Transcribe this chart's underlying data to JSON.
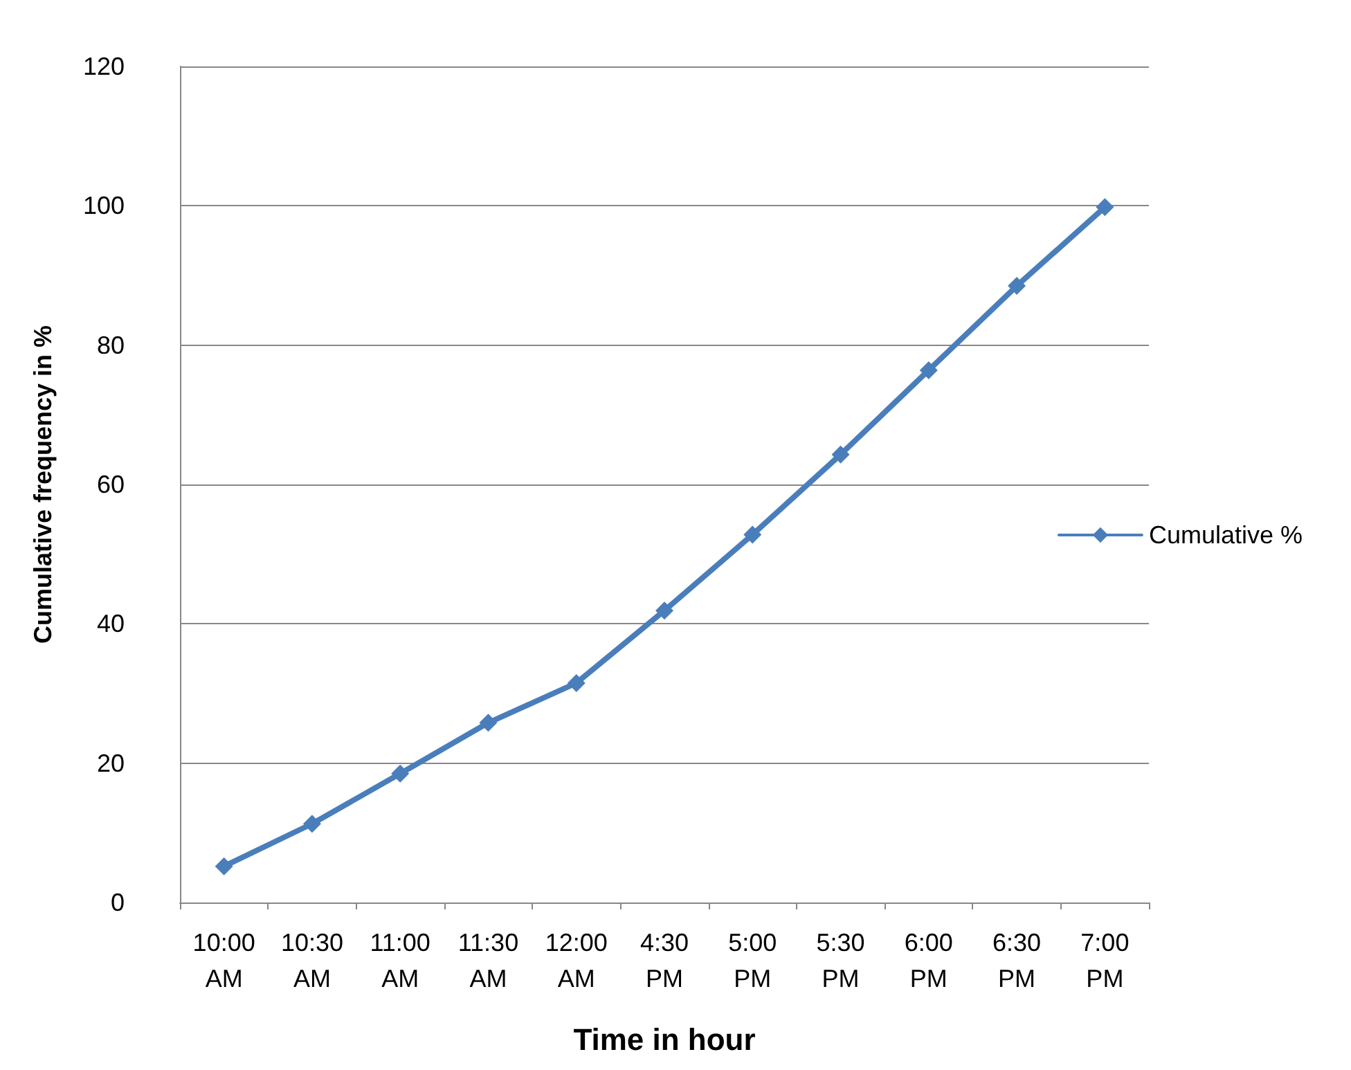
{
  "chart_data": {
    "type": "line",
    "xlabel": "Time in hour",
    "ylabel": "Cumulative frequency in %",
    "categories": [
      "10:00 AM",
      "10:30 AM",
      "11:00 AM",
      "11:30 AM",
      "12:00 AM",
      "4:30 PM",
      "5:00 PM",
      "5:30 PM",
      "6:00 PM",
      "6:30 PM",
      "7:00 PM"
    ],
    "series": [
      {
        "name": "Cumulative %",
        "color": "#4a7ebb",
        "values": [
          5.2,
          11.3,
          18.5,
          25.8,
          31.5,
          41.9,
          52.8,
          64.3,
          76.4,
          88.5,
          99.8
        ]
      }
    ],
    "ylim": [
      0,
      120
    ],
    "yticks": [
      0,
      20,
      40,
      60,
      80,
      100,
      120
    ],
    "grid": "y",
    "legend": "right",
    "marker": "diamond",
    "line_style": "solid"
  }
}
